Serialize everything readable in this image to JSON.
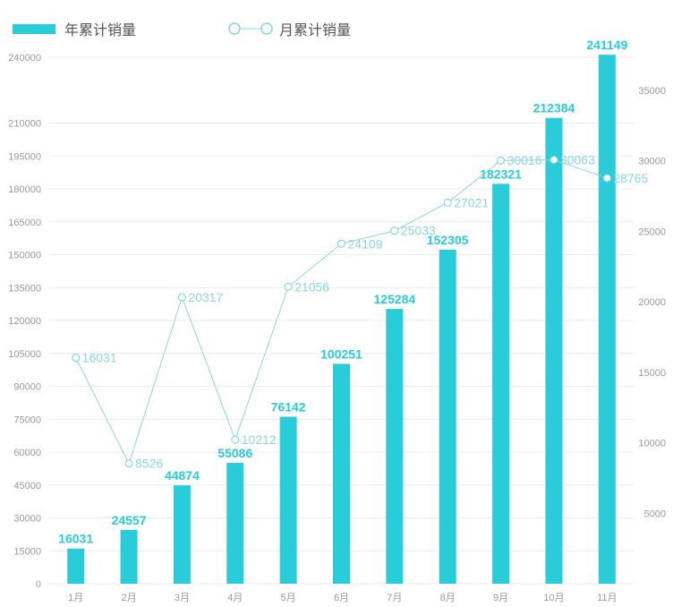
{
  "chart_data": {
    "type": "bar+line",
    "categories": [
      "1月",
      "2月",
      "3月",
      "4月",
      "5月",
      "6月",
      "7月",
      "8月",
      "9月",
      "10月",
      "11月"
    ],
    "series": [
      {
        "name": "年累计销量",
        "type": "bar",
        "axis": "left",
        "values": [
          16031,
          24557,
          44874,
          55086,
          76142,
          100251,
          125284,
          152305,
          182321,
          212384,
          241149
        ]
      },
      {
        "name": "月累计销量",
        "type": "line",
        "axis": "right",
        "values": [
          16031,
          8526,
          20317,
          10212,
          21056,
          24109,
          25033,
          27021,
          30016,
          30063,
          28765
        ]
      }
    ],
    "y_left": {
      "ticks": [
        0,
        15000,
        30000,
        45000,
        60000,
        75000,
        90000,
        105000,
        120000,
        135000,
        150000,
        165000,
        180000,
        195000,
        210000,
        240000
      ]
    },
    "y_right": {
      "ticks": [
        5000,
        10000,
        15000,
        20000,
        25000,
        30000,
        35000
      ]
    },
    "legend": "top-left",
    "grid": true,
    "colors": {
      "bar": "#29cdd9",
      "line": "#8bd6e3",
      "line_label": "#8bd6e3",
      "bar_label": "#29cdd9"
    }
  }
}
